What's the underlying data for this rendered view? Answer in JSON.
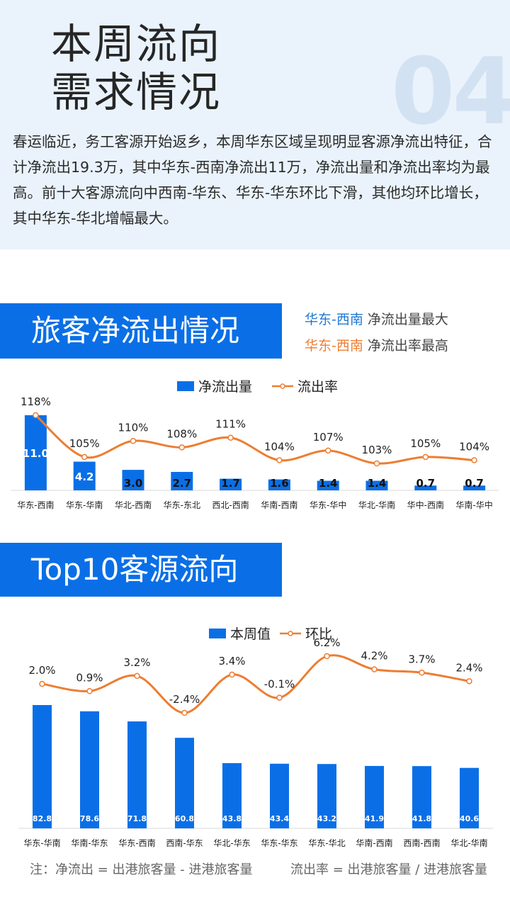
{
  "header": {
    "title_line1": "本周流向",
    "title_line2": "需求情况",
    "section_number": "04",
    "intro": "春运临近，务工客源开始返乡，本周华东区域呈现明显客源净流出特征，合计净流出19.3万，其中华东-西南净流出11万，净流出量和净流出率均为最高。前十大客源流向中西南-华东、华东-华东环比下滑，其他均环比增长，其中华东-华北增幅最大。"
  },
  "section1": {
    "title": "旅客净流出情况",
    "highlights": [
      {
        "key": "华东-西南",
        "text": "净流出量最大",
        "color": "#1f78d1"
      },
      {
        "key": "华东-西南",
        "text": "净流出率最高",
        "color": "#ed7d31"
      }
    ]
  },
  "section2": {
    "title": "Top10客源流向"
  },
  "notes": {
    "left": "注：净流出 = 出港旅客量 - 进港旅客量",
    "right": "流出率 = 出港旅客量 / 进港旅客量"
  },
  "chart_data": [
    {
      "type": "bar",
      "categories": [
        "华东-西南",
        "华东-华南",
        "华北-西南",
        "华东-东北",
        "西北-西南",
        "华南-西南",
        "华东-华中",
        "华北-华南",
        "华中-西南",
        "华南-华中"
      ],
      "series": [
        {
          "name": "净流出量",
          "type": "bar",
          "values": [
            11.0,
            4.2,
            3.0,
            2.7,
            1.7,
            1.6,
            1.4,
            1.4,
            0.7,
            0.7
          ],
          "labels": [
            "11.0",
            "4.2",
            "3.0",
            "2.7",
            "1.7",
            "1.6",
            "1.4",
            "1.4",
            "0.7",
            "0.7"
          ],
          "color": "#0a6fe6"
        },
        {
          "name": "流出率",
          "type": "line",
          "values": [
            118,
            105,
            110,
            108,
            111,
            104,
            107,
            103,
            105,
            104
          ],
          "labels": [
            "118%",
            "105%",
            "110%",
            "108%",
            "111%",
            "104%",
            "107%",
            "103%",
            "105%",
            "104%"
          ],
          "color": "#ed7d31"
        }
      ],
      "legend": "top-center",
      "grid": false
    },
    {
      "type": "bar",
      "categories": [
        "华东-华南",
        "华南-华东",
        "华东-西南",
        "西南-华东",
        "华北-华东",
        "华东-华东",
        "华东-华北",
        "华南-西南",
        "西南-西南",
        "华北-华南"
      ],
      "series": [
        {
          "name": "本周值",
          "type": "bar",
          "values": [
            82.8,
            78.6,
            71.8,
            60.8,
            43.8,
            43.4,
            43.2,
            41.9,
            41.8,
            40.6
          ],
          "labels": [
            "82.8",
            "78.6",
            "71.8",
            "60.8",
            "43.8",
            "43.4",
            "43.2",
            "41.9",
            "41.8",
            "40.6"
          ],
          "color": "#0a6fe6"
        },
        {
          "name": "环比",
          "type": "line",
          "values": [
            2.0,
            0.9,
            3.2,
            -2.4,
            3.4,
            -0.1,
            6.2,
            4.2,
            3.7,
            2.4
          ],
          "labels": [
            "2.0%",
            "0.9%",
            "3.2%",
            "-2.4%",
            "3.4%",
            "-0.1%",
            "6.2%",
            "4.2%",
            "3.7%",
            "2.4%"
          ],
          "color": "#ed7d31"
        }
      ],
      "legend": "top-center",
      "grid": false
    }
  ]
}
